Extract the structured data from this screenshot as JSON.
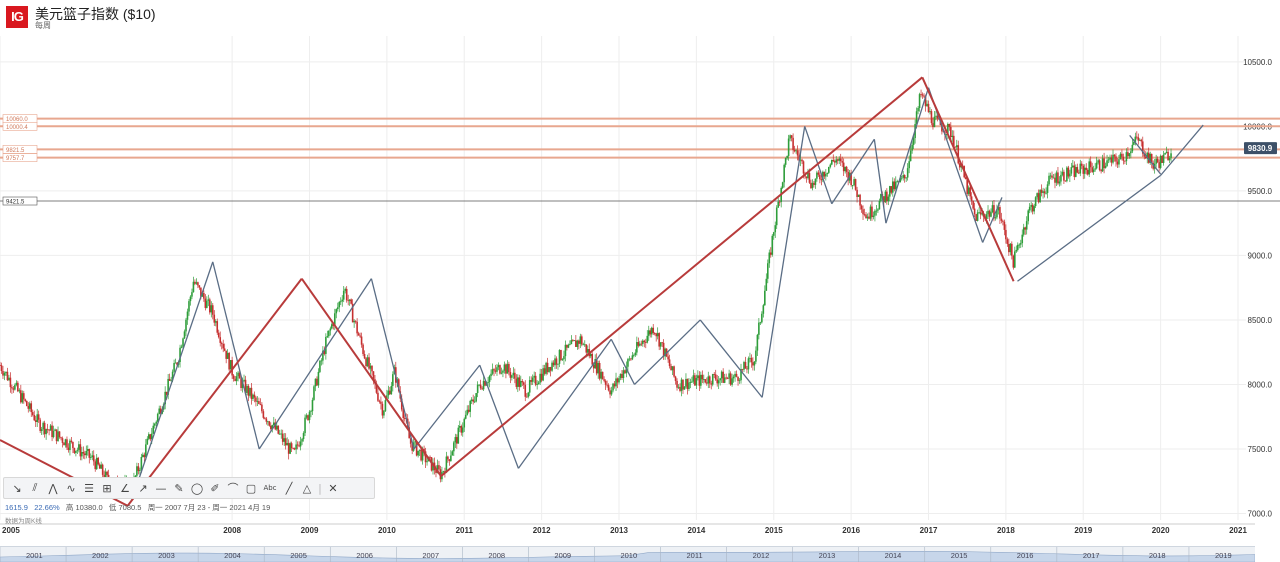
{
  "header": {
    "logo_text": "IG",
    "title": "美元篮子指数 ($10)",
    "interval": "每周"
  },
  "toolbar": {
    "tools": [
      "trendline-tool",
      "parallel-channel-tool",
      "zigzag-tool",
      "wave-tool",
      "fib-retracement-tool",
      "gann-tool",
      "angle-tool",
      "arrow-line-tool",
      "horizontal-line-tool",
      "pencil-tool",
      "circle-tool",
      "ruler-tool",
      "arc-tool",
      "rectangle-tool",
      "text-tool",
      "line-tool",
      "triangle-tool",
      "close-icon"
    ],
    "glyphs": [
      "↘",
      "⫽",
      "⋀",
      "∿",
      "☰",
      "⊞",
      "∠",
      "↗",
      "—",
      "✎",
      "◯",
      "✐",
      "⌒",
      "▢",
      "Abc",
      "╱",
      "△",
      "✕"
    ]
  },
  "stats": {
    "change": "1615.9",
    "change_pct": "22.66%",
    "high": "高 10380.0",
    "low": "低 7080.5",
    "range": "周一 2007 7月 23 - 周一 2021 4月 19"
  },
  "note": "数据为周K线",
  "chart_data": {
    "type": "candlestick",
    "title": "美元篮子指数 ($10)",
    "interval": "weekly",
    "x_range": [
      2005.0,
      2021.0
    ],
    "ylim": [
      6950,
      10700
    ],
    "y_ticks": [
      7000,
      7500,
      8000,
      8500,
      9000,
      9500,
      10000,
      10500
    ],
    "y_tick_labels": [
      "7000.0",
      "7500.0",
      "8000.0",
      "8500.0",
      "9000.0",
      "9500.0",
      "10000.0",
      "10500.0"
    ],
    "x_ticks": [
      2005,
      2008,
      2009,
      2010,
      2011,
      2012,
      2013,
      2014,
      2015,
      2016,
      2017,
      2018,
      2019,
      2020,
      2021
    ],
    "last_price": "9830.9",
    "horizontal_levels": [
      {
        "value": 10060.0,
        "label": "10060.0",
        "color": "#e8a78f"
      },
      {
        "value": 10000.4,
        "label": "10000.4",
        "color": "#e8a78f"
      },
      {
        "value": 9821.5,
        "label": "9821.5",
        "color": "#e8a78f"
      },
      {
        "value": 9757.7,
        "label": "9757.7",
        "color": "#e8a78f"
      },
      {
        "value": 9421.5,
        "label": "9421.5",
        "color": "#555555"
      }
    ],
    "price_path": [
      [
        2005.0,
        8150
      ],
      [
        2005.5,
        7700
      ],
      [
        2006.2,
        7420
      ],
      [
        2006.4,
        7250
      ],
      [
        2006.7,
        7200
      ],
      [
        2007.3,
        8200
      ],
      [
        2007.5,
        8800
      ],
      [
        2007.75,
        8550
      ],
      [
        2008.0,
        8100
      ],
      [
        2008.2,
        7950
      ],
      [
        2008.5,
        7700
      ],
      [
        2008.8,
        7450
      ],
      [
        2009.0,
        7800
      ],
      [
        2009.2,
        8300
      ],
      [
        2009.45,
        8750
      ],
      [
        2009.7,
        8250
      ],
      [
        2009.95,
        7800
      ],
      [
        2010.1,
        8100
      ],
      [
        2010.3,
        7550
      ],
      [
        2010.7,
        7300
      ],
      [
        2010.95,
        7650
      ],
      [
        2011.2,
        8000
      ],
      [
        2011.5,
        8150
      ],
      [
        2011.8,
        7950
      ],
      [
        2012.1,
        8150
      ],
      [
        2012.5,
        8350
      ],
      [
        2012.9,
        7950
      ],
      [
        2013.2,
        8250
      ],
      [
        2013.45,
        8450
      ],
      [
        2013.75,
        8000
      ],
      [
        2014.2,
        8050
      ],
      [
        2014.5,
        8050
      ],
      [
        2014.75,
        8200
      ],
      [
        2015.0,
        9200
      ],
      [
        2015.2,
        9900
      ],
      [
        2015.5,
        9550
      ],
      [
        2015.8,
        9750
      ],
      [
        2016.0,
        9600
      ],
      [
        2016.2,
        9300
      ],
      [
        2016.5,
        9500
      ],
      [
        2016.7,
        9600
      ],
      [
        2016.9,
        10250
      ],
      [
        2017.05,
        10050
      ],
      [
        2017.3,
        9950
      ],
      [
        2017.6,
        9300
      ],
      [
        2017.9,
        9350
      ],
      [
        2018.1,
        8950
      ],
      [
        2018.3,
        9350
      ],
      [
        2018.6,
        9600
      ],
      [
        2018.9,
        9650
      ],
      [
        2019.2,
        9700
      ],
      [
        2019.5,
        9750
      ],
      [
        2019.7,
        9900
      ],
      [
        2019.9,
        9700
      ],
      [
        2020.05,
        9750
      ],
      [
        2020.15,
        9830
      ]
    ],
    "trend_lines_red": [
      [
        [
          2005.0,
          7570
        ],
        [
          2006.65,
          7060
        ]
      ],
      [
        [
          2006.65,
          7060
        ],
        [
          2008.9,
          8820
        ]
      ],
      [
        [
          2008.9,
          8820
        ],
        [
          2010.7,
          7290
        ]
      ],
      [
        [
          2010.7,
          7290
        ],
        [
          2016.92,
          10380
        ]
      ],
      [
        [
          2016.92,
          10380
        ],
        [
          2018.1,
          8800
        ]
      ]
    ],
    "trend_lines_blue": [
      [
        [
          2006.7,
          7100
        ],
        [
          2007.75,
          8950
        ]
      ],
      [
        [
          2007.75,
          8950
        ],
        [
          2008.35,
          7500
        ]
      ],
      [
        [
          2008.35,
          7500
        ],
        [
          2009.8,
          8820
        ]
      ],
      [
        [
          2009.8,
          8820
        ],
        [
          2010.35,
          7500
        ]
      ],
      [
        [
          2010.35,
          7500
        ],
        [
          2011.2,
          8150
        ]
      ],
      [
        [
          2011.2,
          8150
        ],
        [
          2011.7,
          7350
        ]
      ],
      [
        [
          2011.7,
          7350
        ],
        [
          2012.9,
          8350
        ]
      ],
      [
        [
          2012.9,
          8350
        ],
        [
          2013.2,
          8000
        ]
      ],
      [
        [
          2013.2,
          8000
        ],
        [
          2014.05,
          8500
        ]
      ],
      [
        [
          2014.05,
          8500
        ],
        [
          2014.85,
          7900
        ]
      ],
      [
        [
          2014.85,
          7900
        ],
        [
          2015.4,
          10000
        ]
      ],
      [
        [
          2015.4,
          10000
        ],
        [
          2015.75,
          9400
        ]
      ],
      [
        [
          2015.75,
          9400
        ],
        [
          2016.3,
          9900
        ]
      ],
      [
        [
          2016.3,
          9900
        ],
        [
          2016.45,
          9250
        ]
      ],
      [
        [
          2016.45,
          9250
        ],
        [
          2017.0,
          10300
        ]
      ],
      [
        [
          2017.0,
          10300
        ],
        [
          2017.7,
          9100
        ]
      ],
      [
        [
          2017.7,
          9100
        ],
        [
          2017.95,
          9450
        ]
      ],
      [
        [
          2018.15,
          8800
        ],
        [
          2020.0,
          9620
        ]
      ],
      [
        [
          2020.0,
          9620
        ],
        [
          2020.55,
          10010
        ]
      ],
      [
        [
          2019.6,
          9930
        ],
        [
          2020.0,
          9630
        ]
      ]
    ],
    "navigator": {
      "labels": [
        "2001",
        "2002",
        "2003",
        "2004",
        "2005",
        "2006",
        "2007",
        "2008",
        "2009",
        "2010",
        "2011",
        "2012",
        "2013",
        "2014",
        "2015",
        "2016",
        "2017",
        "2018",
        "2019"
      ]
    },
    "colors": {
      "up": "#2e9d3a",
      "down": "#c62f2f",
      "red_line": "#b83b3b",
      "blue_line": "#5a6d85",
      "price_tag": "#3d5068"
    }
  }
}
